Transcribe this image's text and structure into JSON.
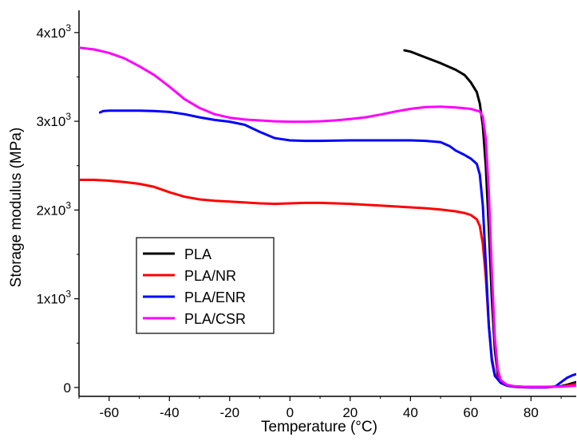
{
  "chart_data": {
    "type": "line",
    "title": "",
    "xlabel": "Temperature (°C)",
    "ylabel": "Storage modulus (MPa)",
    "xlim": [
      -70,
      95
    ],
    "ylim": [
      -100,
      4250
    ],
    "x_ticks": [
      -60,
      -40,
      -20,
      0,
      20,
      40,
      60,
      80
    ],
    "x_tick_labels": [
      "-60",
      "-40",
      "-20",
      "0",
      "20",
      "40",
      "60",
      "80"
    ],
    "y_ticks": [
      0,
      1000,
      2000,
      3000,
      4000
    ],
    "y_tick_labels": [
      {
        "base": "0",
        "exp": ""
      },
      {
        "base": "1x10",
        "exp": "3"
      },
      {
        "base": "2x10",
        "exp": "3"
      },
      {
        "base": "3x10",
        "exp": "3"
      },
      {
        "base": "4x10",
        "exp": "3"
      }
    ],
    "grid": false,
    "legend_position": "lower-left",
    "series": [
      {
        "name": "PLA",
        "color": "#000000",
        "points": [
          [
            38,
            3800
          ],
          [
            40,
            3785
          ],
          [
            45,
            3720
          ],
          [
            50,
            3655
          ],
          [
            55,
            3580
          ],
          [
            58,
            3520
          ],
          [
            60,
            3440
          ],
          [
            62,
            3330
          ],
          [
            63,
            3200
          ],
          [
            64,
            2950
          ],
          [
            65,
            2500
          ],
          [
            66,
            1800
          ],
          [
            67,
            1000
          ],
          [
            68,
            420
          ],
          [
            69,
            150
          ],
          [
            70,
            60
          ],
          [
            72,
            25
          ],
          [
            75,
            10
          ],
          [
            80,
            5
          ],
          [
            85,
            5
          ],
          [
            90,
            15
          ],
          [
            92,
            30
          ],
          [
            95,
            60
          ]
        ]
      },
      {
        "name": "PLA/NR",
        "color": "#ff0000",
        "points": [
          [
            -70,
            2340
          ],
          [
            -65,
            2340
          ],
          [
            -60,
            2330
          ],
          [
            -55,
            2315
          ],
          [
            -50,
            2295
          ],
          [
            -45,
            2260
          ],
          [
            -40,
            2200
          ],
          [
            -35,
            2150
          ],
          [
            -30,
            2120
          ],
          [
            -25,
            2105
          ],
          [
            -20,
            2095
          ],
          [
            -15,
            2085
          ],
          [
            -10,
            2075
          ],
          [
            -5,
            2070
          ],
          [
            0,
            2075
          ],
          [
            5,
            2080
          ],
          [
            10,
            2080
          ],
          [
            15,
            2075
          ],
          [
            20,
            2070
          ],
          [
            25,
            2060
          ],
          [
            30,
            2050
          ],
          [
            35,
            2040
          ],
          [
            40,
            2030
          ],
          [
            45,
            2020
          ],
          [
            50,
            2005
          ],
          [
            55,
            1985
          ],
          [
            58,
            1965
          ],
          [
            60,
            1945
          ],
          [
            62,
            1895
          ],
          [
            63,
            1820
          ],
          [
            64,
            1620
          ],
          [
            65,
            1250
          ],
          [
            66,
            700
          ],
          [
            67,
            330
          ],
          [
            68,
            150
          ],
          [
            70,
            60
          ],
          [
            72,
            25
          ],
          [
            75,
            10
          ],
          [
            80,
            5
          ],
          [
            85,
            5
          ],
          [
            90,
            10
          ],
          [
            93,
            25
          ],
          [
            95,
            40
          ]
        ]
      },
      {
        "name": "PLA/ENR",
        "color": "#0000ff",
        "points": [
          [
            -63,
            3100
          ],
          [
            -62,
            3115
          ],
          [
            -60,
            3120
          ],
          [
            -55,
            3120
          ],
          [
            -50,
            3120
          ],
          [
            -45,
            3115
          ],
          [
            -40,
            3105
          ],
          [
            -35,
            3080
          ],
          [
            -30,
            3045
          ],
          [
            -25,
            3015
          ],
          [
            -20,
            2995
          ],
          [
            -15,
            2960
          ],
          [
            -10,
            2880
          ],
          [
            -5,
            2810
          ],
          [
            0,
            2785
          ],
          [
            5,
            2780
          ],
          [
            10,
            2780
          ],
          [
            20,
            2785
          ],
          [
            30,
            2785
          ],
          [
            40,
            2785
          ],
          [
            45,
            2780
          ],
          [
            50,
            2765
          ],
          [
            53,
            2720
          ],
          [
            55,
            2670
          ],
          [
            58,
            2620
          ],
          [
            60,
            2580
          ],
          [
            62,
            2520
          ],
          [
            63,
            2400
          ],
          [
            64,
            2050
          ],
          [
            65,
            1400
          ],
          [
            66,
            700
          ],
          [
            67,
            300
          ],
          [
            68,
            130
          ],
          [
            70,
            50
          ],
          [
            72,
            20
          ],
          [
            75,
            5
          ],
          [
            80,
            0
          ],
          [
            85,
            0
          ],
          [
            88,
            10
          ],
          [
            90,
            60
          ],
          [
            92,
            110
          ],
          [
            94,
            140
          ],
          [
            95,
            150
          ]
        ]
      },
      {
        "name": "PLA/CSR",
        "color": "#ff00ff",
        "points": [
          [
            -70,
            3830
          ],
          [
            -65,
            3810
          ],
          [
            -60,
            3770
          ],
          [
            -55,
            3710
          ],
          [
            -50,
            3620
          ],
          [
            -45,
            3520
          ],
          [
            -40,
            3390
          ],
          [
            -35,
            3250
          ],
          [
            -30,
            3150
          ],
          [
            -25,
            3080
          ],
          [
            -20,
            3040
          ],
          [
            -15,
            3020
          ],
          [
            -10,
            3010
          ],
          [
            -5,
            3000
          ],
          [
            0,
            2995
          ],
          [
            5,
            2995
          ],
          [
            10,
            3000
          ],
          [
            15,
            3010
          ],
          [
            20,
            3025
          ],
          [
            25,
            3045
          ],
          [
            30,
            3075
          ],
          [
            35,
            3110
          ],
          [
            40,
            3140
          ],
          [
            45,
            3160
          ],
          [
            50,
            3165
          ],
          [
            55,
            3155
          ],
          [
            60,
            3140
          ],
          [
            63,
            3110
          ],
          [
            64,
            3050
          ],
          [
            65,
            2800
          ],
          [
            66,
            2200
          ],
          [
            67,
            1300
          ],
          [
            68,
            550
          ],
          [
            69,
            200
          ],
          [
            70,
            80
          ],
          [
            72,
            30
          ],
          [
            75,
            10
          ],
          [
            80,
            5
          ],
          [
            85,
            5
          ],
          [
            90,
            10
          ],
          [
            95,
            20
          ]
        ]
      }
    ]
  }
}
